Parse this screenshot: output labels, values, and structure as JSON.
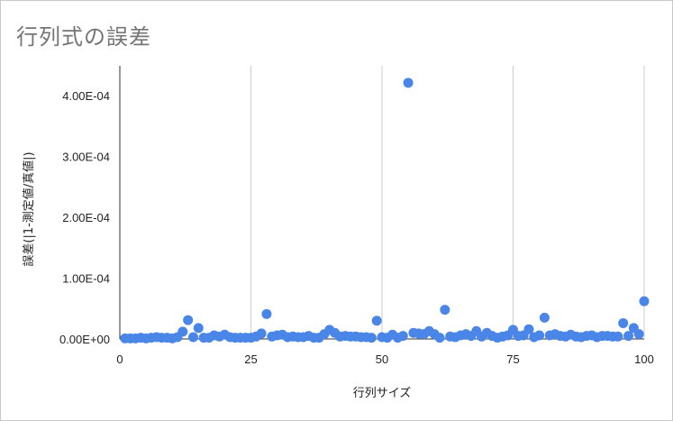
{
  "chart_data": {
    "type": "scatter",
    "title": "行列式の誤差",
    "xlabel": "行列サイズ",
    "ylabel": "誤差(|1-測定値/真値|)",
    "xlim": [
      0,
      100
    ],
    "ylim": [
      0,
      0.00045
    ],
    "x_ticks": [
      "0",
      "25",
      "50",
      "75",
      "100"
    ],
    "y_ticks": [
      "0.00E+00",
      "1.00E-04",
      "2.00E-04",
      "3.00E-04",
      "4.00E-04"
    ],
    "x_tick_values": [
      0,
      25,
      50,
      75,
      100
    ],
    "y_tick_values": [
      0,
      0.0001,
      0.0002,
      0.0003,
      0.0004
    ],
    "grid": "vertical",
    "legend": "none",
    "point_color": "#4a86e8",
    "points": [
      [
        1,
        1e-06
      ],
      [
        2,
        1e-06
      ],
      [
        3,
        1e-06
      ],
      [
        4,
        2e-06
      ],
      [
        5,
        1e-06
      ],
      [
        6,
        2e-06
      ],
      [
        7,
        3e-06
      ],
      [
        8,
        2e-06
      ],
      [
        9,
        2e-06
      ],
      [
        10,
        1e-06
      ],
      [
        11,
        3e-06
      ],
      [
        12,
        1.2e-05
      ],
      [
        13,
        3.1e-05
      ],
      [
        14,
        3e-06
      ],
      [
        15,
        1.8e-05
      ],
      [
        16,
        2e-06
      ],
      [
        17,
        2e-06
      ],
      [
        18,
        6e-06
      ],
      [
        19,
        4e-06
      ],
      [
        20,
        7e-06
      ],
      [
        21,
        3e-06
      ],
      [
        22,
        2e-06
      ],
      [
        23,
        2e-06
      ],
      [
        24,
        2e-06
      ],
      [
        25,
        2e-06
      ],
      [
        26,
        4e-06
      ],
      [
        27,
        9e-06
      ],
      [
        28,
        4.1e-05
      ],
      [
        29,
        4e-06
      ],
      [
        30,
        6e-06
      ],
      [
        31,
        7e-06
      ],
      [
        32,
        3e-06
      ],
      [
        33,
        4e-06
      ],
      [
        34,
        3e-06
      ],
      [
        35,
        3e-06
      ],
      [
        36,
        5e-06
      ],
      [
        37,
        2e-06
      ],
      [
        38,
        2e-06
      ],
      [
        39,
        8e-06
      ],
      [
        40,
        1.5e-05
      ],
      [
        41,
        1e-05
      ],
      [
        42,
        4e-06
      ],
      [
        43,
        5e-06
      ],
      [
        44,
        4e-06
      ],
      [
        45,
        4e-06
      ],
      [
        46,
        3e-06
      ],
      [
        47,
        3e-06
      ],
      [
        48,
        2e-06
      ],
      [
        49,
        3e-05
      ],
      [
        50,
        3e-06
      ],
      [
        51,
        2e-06
      ],
      [
        52,
        7e-06
      ],
      [
        53,
        2e-06
      ],
      [
        54,
        5e-06
      ],
      [
        55,
        0.000421
      ],
      [
        56,
        1e-05
      ],
      [
        57,
        9e-06
      ],
      [
        58,
        8e-06
      ],
      [
        59,
        1.3e-05
      ],
      [
        60,
        8e-06
      ],
      [
        61,
        2e-06
      ],
      [
        62,
        4.8e-05
      ],
      [
        63,
        4e-06
      ],
      [
        64,
        3e-06
      ],
      [
        65,
        6e-06
      ],
      [
        66,
        8e-06
      ],
      [
        67,
        5e-06
      ],
      [
        68,
        1.3e-05
      ],
      [
        69,
        4e-06
      ],
      [
        70,
        1e-05
      ],
      [
        71,
        5e-06
      ],
      [
        72,
        2e-06
      ],
      [
        73,
        4e-06
      ],
      [
        74,
        6e-06
      ],
      [
        75,
        1.5e-05
      ],
      [
        76,
        5e-06
      ],
      [
        77,
        6e-06
      ],
      [
        78,
        1.6e-05
      ],
      [
        79,
        3e-06
      ],
      [
        80,
        6e-06
      ],
      [
        81,
        3.5e-05
      ],
      [
        82,
        6e-06
      ],
      [
        83,
        8e-06
      ],
      [
        84,
        5e-06
      ],
      [
        85,
        4e-06
      ],
      [
        86,
        7e-06
      ],
      [
        87,
        4e-06
      ],
      [
        88,
        3e-06
      ],
      [
        89,
        5e-06
      ],
      [
        90,
        6e-06
      ],
      [
        91,
        3e-06
      ],
      [
        92,
        5e-06
      ],
      [
        93,
        5e-06
      ],
      [
        94,
        4e-06
      ],
      [
        95,
        4e-06
      ],
      [
        96,
        2.6e-05
      ],
      [
        97,
        5e-06
      ],
      [
        98,
        1.8e-05
      ],
      [
        99,
        8e-06
      ],
      [
        100,
        6.2e-05
      ]
    ]
  }
}
